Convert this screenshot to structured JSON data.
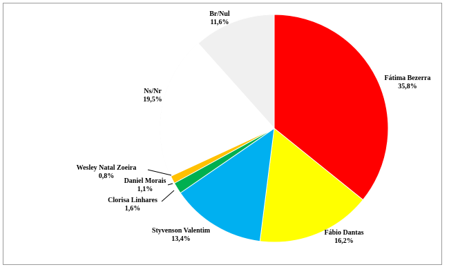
{
  "chart_data": {
    "type": "pie",
    "title": "",
    "slices": [
      {
        "label": "Fátima Bezerra",
        "value": 35.8,
        "value_label": "35,8%",
        "color": "#ff0000"
      },
      {
        "label": "Fábio Dantas",
        "value": 16.2,
        "value_label": "16,2%",
        "color": "#ffff00"
      },
      {
        "label": "Styvenson Valentim",
        "value": 13.4,
        "value_label": "13,4%",
        "color": "#00b0f0"
      },
      {
        "label": "Clorisa Linhares",
        "value": 1.6,
        "value_label": "1,6%",
        "color": "#00b050"
      },
      {
        "label": "Daniel Morais",
        "value": 1.1,
        "value_label": "1,1%",
        "color": "#ffc000"
      },
      {
        "label": "Wesley Natal Zoeira",
        "value": 0.8,
        "value_label": "0,8%",
        "color": "#ffffff"
      },
      {
        "label": "Ns/Nr",
        "value": 19.5,
        "value_label": "19,5%",
        "color": "#ffffff"
      },
      {
        "label": "Br/Nul",
        "value": 11.6,
        "value_label": "11,6%",
        "color": "#f0f0f0"
      }
    ]
  }
}
